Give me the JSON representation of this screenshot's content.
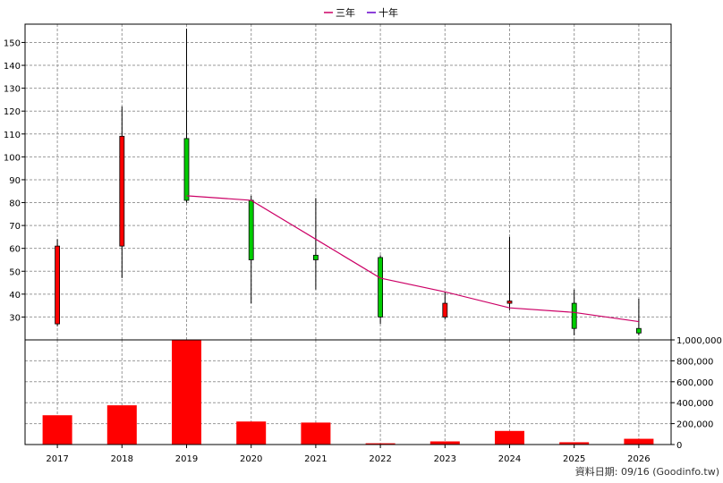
{
  "legend": [
    {
      "label": "三年",
      "color": "#cc0066"
    },
    {
      "label": "十年",
      "color": "#6600cc"
    }
  ],
  "footer": "資料日期: 09/16  (Goodinfo.tw)",
  "colors": {
    "up": "#ff0000",
    "down": "#00cc00",
    "volume": "#ff0000",
    "line3": "#cc0066",
    "grid": "#999999"
  },
  "chart_data": [
    {
      "type": "candlestick",
      "title": "",
      "categories": [
        "2017",
        "2018",
        "2019",
        "2020",
        "2021",
        "2022",
        "2023",
        "2024",
        "2025",
        "2026"
      ],
      "ylim": [
        20,
        158
      ],
      "yticks": [
        30,
        40,
        50,
        60,
        70,
        80,
        90,
        100,
        110,
        120,
        130,
        140,
        150
      ],
      "grid": true,
      "legend_position": "top-center",
      "candles": [
        {
          "year": "2017",
          "open": 27,
          "close": 61,
          "high": 64,
          "low": 26
        },
        {
          "year": "2018",
          "open": 61,
          "close": 109,
          "high": 122,
          "low": 47
        },
        {
          "year": "2019",
          "open": 108,
          "close": 81,
          "high": 156,
          "low": 80
        },
        {
          "year": "2020",
          "open": 81,
          "close": 55,
          "high": 83,
          "low": 36
        },
        {
          "year": "2021",
          "open": 57,
          "close": 55,
          "high": 82,
          "low": 42
        },
        {
          "year": "2022",
          "open": 56,
          "close": 30,
          "high": 57,
          "low": 27
        },
        {
          "year": "2023",
          "open": 30,
          "close": 36,
          "high": 41,
          "low": 29
        },
        {
          "year": "2024",
          "open": 36,
          "close": 37,
          "high": 65,
          "low": 33
        },
        {
          "year": "2025",
          "open": 36,
          "close": 25,
          "high": 42,
          "low": 22
        },
        {
          "year": "2026",
          "open": 25,
          "close": 23,
          "high": 38,
          "low": 22
        }
      ],
      "series": [
        {
          "name": "三年",
          "x": [
            "2019",
            "2020",
            "2021",
            "2022",
            "2023",
            "2024",
            "2025",
            "2026"
          ],
          "values": [
            83,
            81,
            64,
            47,
            41,
            34,
            32,
            28
          ]
        },
        {
          "name": "十年",
          "x": [],
          "values": []
        }
      ]
    },
    {
      "type": "bar",
      "categories": [
        "2017",
        "2018",
        "2019",
        "2020",
        "2021",
        "2022",
        "2023",
        "2024",
        "2025",
        "2026"
      ],
      "values": [
        280000,
        375000,
        1020000,
        220000,
        210000,
        12000,
        30000,
        130000,
        22000,
        55000
      ],
      "ylim": [
        0,
        1000000
      ],
      "yticks": [
        0,
        200000,
        400000,
        600000,
        800000,
        1000000
      ],
      "ytick_labels": [
        "0",
        "200,000",
        "400,000",
        "600,000",
        "800,000",
        "1,000,000"
      ]
    }
  ]
}
